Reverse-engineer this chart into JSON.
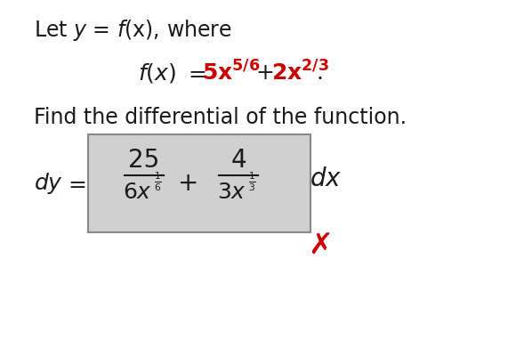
{
  "bg_color": "#ffffff",
  "text_color": "#1a1a1a",
  "red_color": "#cc0000",
  "find_text": "Find the differential of the function.",
  "box_facecolor": "#d0d0d0",
  "box_edgecolor": "#888888",
  "cross_color": "#cc0000",
  "figw": 5.8,
  "figh": 3.82,
  "dpi": 100
}
